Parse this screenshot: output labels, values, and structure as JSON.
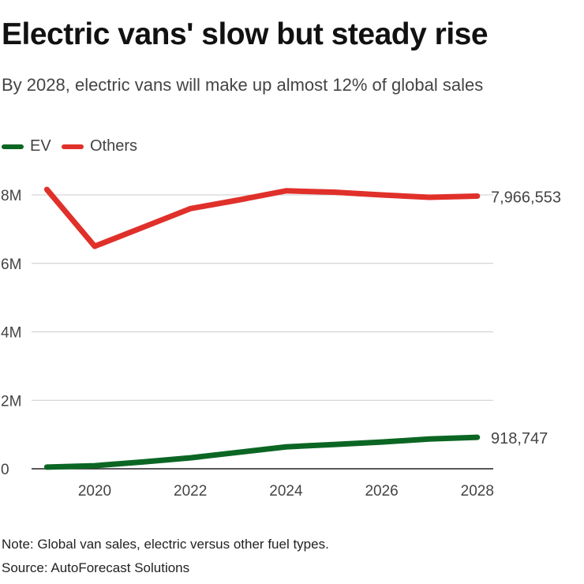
{
  "title": "Electric vans' slow but steady rise",
  "subtitle": "By 2028, electric vans will make up almost 12% of global sales",
  "note": "Note: Global van sales, electric versus other fuel types.",
  "source": "Source: AutoForecast Solutions",
  "chart_data": {
    "type": "line",
    "x": [
      2019,
      2020,
      2021,
      2022,
      2023,
      2024,
      2025,
      2026,
      2027,
      2028
    ],
    "series": [
      {
        "name": "EV",
        "color": "#0b6623",
        "values": [
          50000,
          90000,
          200000,
          320000,
          480000,
          640000,
          710000,
          780000,
          870000,
          918747
        ],
        "end_label": "918,747"
      },
      {
        "name": "Others",
        "color": "#e0302a",
        "values": [
          8160000,
          6500000,
          7050000,
          7600000,
          7850000,
          8120000,
          8080000,
          8000000,
          7930000,
          7966553
        ],
        "end_label": "7,966,553"
      }
    ],
    "y_ticks": [
      {
        "v": 0,
        "label": "0"
      },
      {
        "v": 2000000,
        "label": "2M"
      },
      {
        "v": 4000000,
        "label": "4M"
      },
      {
        "v": 6000000,
        "label": "6M"
      },
      {
        "v": 8000000,
        "label": "8M"
      }
    ],
    "x_ticks": [
      {
        "v": 2020,
        "label": "2020"
      },
      {
        "v": 2022,
        "label": "2022"
      },
      {
        "v": 2024,
        "label": "2024"
      },
      {
        "v": 2026,
        "label": "2026"
      },
      {
        "v": 2028,
        "label": "2028"
      }
    ],
    "ylim": [
      0,
      8000000
    ],
    "grid": true,
    "legend": "top-left"
  }
}
